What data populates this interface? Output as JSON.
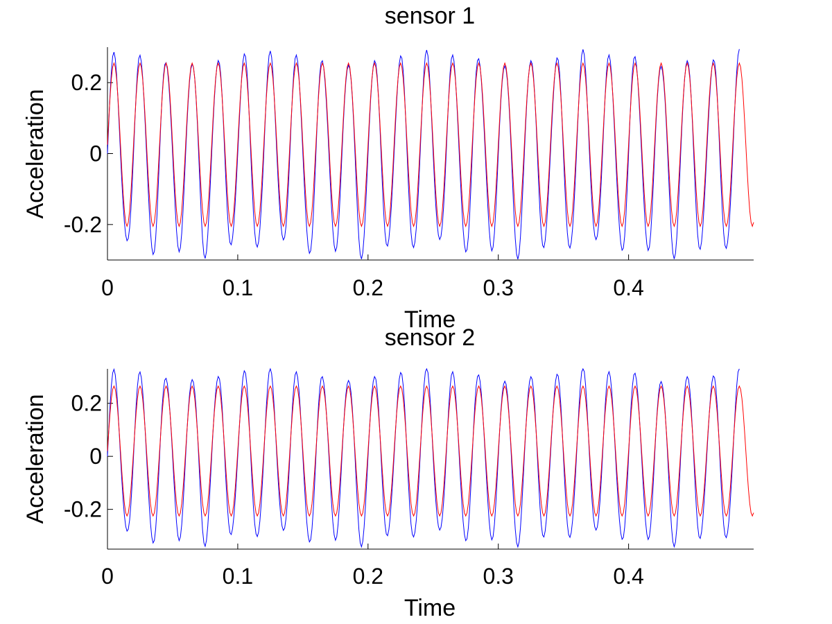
{
  "chart_data": [
    {
      "type": "line",
      "title": "sensor 1",
      "xlabel": "Time",
      "ylabel": "Acceleration",
      "xlim": [
        0,
        0.496
      ],
      "ylim": [
        -0.3,
        0.3
      ],
      "xticks": [
        0,
        0.1,
        0.2,
        0.3,
        0.4
      ],
      "xtick_labels": [
        "0",
        "0.1",
        "0.2",
        "0.3",
        "0.4"
      ],
      "yticks": [
        -0.2,
        0,
        0.2
      ],
      "ytick_labels": [
        "-0.2",
        "0",
        "0.2"
      ],
      "grid": false,
      "legend": "none",
      "signal": {
        "frequency_hz": 50,
        "red_amplitude": 0.23,
        "red_offset": 0.025,
        "red_end_time": 0.496,
        "blue_amplitude": 0.27,
        "blue_end_time": 0.485
      },
      "series": [
        {
          "color": "#0000ff",
          "style": "solid"
        },
        {
          "color": "#ff0000",
          "style": "solid"
        }
      ]
    },
    {
      "type": "line",
      "title": "sensor 2",
      "xlabel": "Time",
      "ylabel": "Acceleration",
      "xlim": [
        0,
        0.496
      ],
      "ylim": [
        -0.35,
        0.33
      ],
      "xticks": [
        0,
        0.1,
        0.2,
        0.3,
        0.4
      ],
      "xtick_labels": [
        "0",
        "0.1",
        "0.2",
        "0.3",
        "0.4"
      ],
      "yticks": [
        -0.2,
        0,
        0.2
      ],
      "ytick_labels": [
        "-0.2",
        "0",
        "0.2"
      ],
      "grid": false,
      "legend": "none",
      "signal": {
        "frequency_hz": 50,
        "red_amplitude": 0.245,
        "red_offset": 0.02,
        "red_end_time": 0.496,
        "blue_amplitude": 0.31,
        "blue_end_time": 0.485
      },
      "series": [
        {
          "color": "#0000ff",
          "style": "solid"
        },
        {
          "color": "#ff0000",
          "style": "solid"
        }
      ]
    }
  ]
}
